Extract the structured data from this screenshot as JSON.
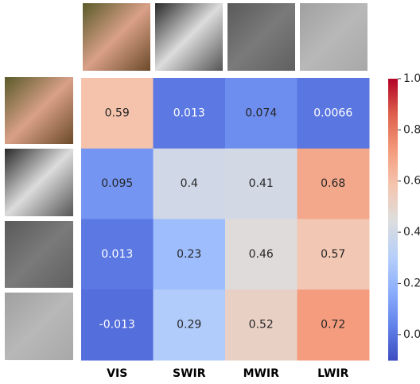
{
  "chart_data": {
    "type": "heatmap",
    "x_categories": [
      "VIS",
      "SWIR",
      "MWIR",
      "LWIR"
    ],
    "values": [
      [
        0.59,
        0.013,
        0.074,
        0.0066
      ],
      [
        0.095,
        0.4,
        0.41,
        0.68
      ],
      [
        0.013,
        0.23,
        0.46,
        0.57
      ],
      [
        -0.013,
        0.29,
        0.52,
        0.72
      ]
    ],
    "colormap": "coolwarm",
    "clim": [
      -0.1,
      1.0
    ],
    "cticks": [
      {
        "value": 0,
        "label": "0.0"
      },
      0.2,
      0.4,
      0.6,
      0.8,
      {
        "value": 1,
        "label": "1.0"
      }
    ]
  }
}
